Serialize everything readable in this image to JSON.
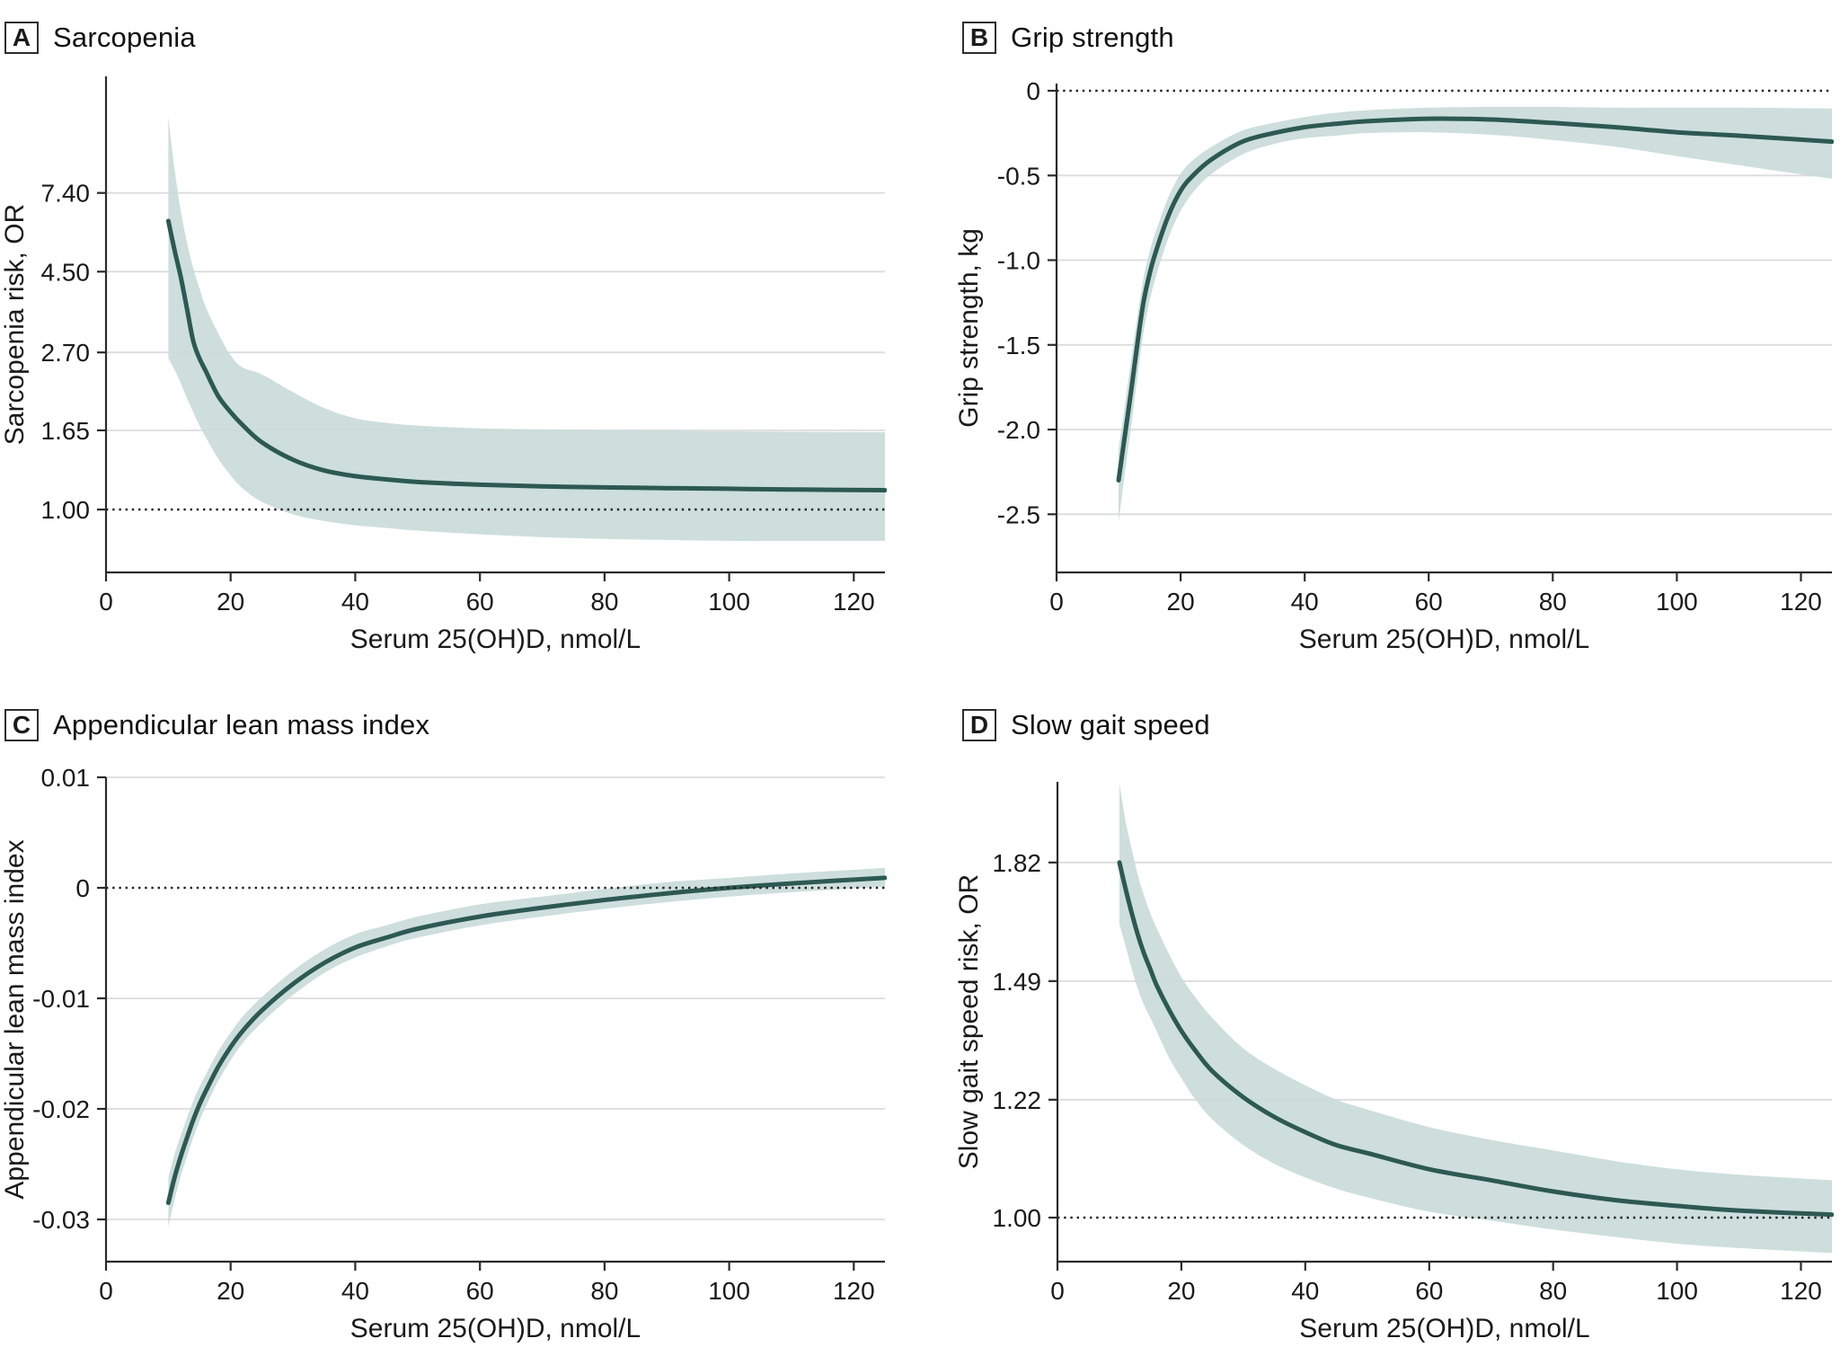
{
  "colors": {
    "band": "#c8dad9",
    "curve": "#2d5953",
    "grid": "#dcdcdc",
    "axis": "#2b2b2b",
    "reference_dots": "#222222",
    "text": "#1a1a1a"
  },
  "chart_data": [
    {
      "panel": "A",
      "label": "A",
      "title": "Sarcopenia",
      "type": "line",
      "xlabel": "Serum 25(OH)D, nmol/L",
      "ylabel": "Sarcopenia risk, OR",
      "yscale": "log",
      "x_range": [
        0,
        125
      ],
      "x_ticks": [
        {
          "v": 0,
          "label": "0"
        },
        {
          "v": 20,
          "label": "20"
        },
        {
          "v": 40,
          "label": "40"
        },
        {
          "v": 60,
          "label": "60"
        },
        {
          "v": 80,
          "label": "80"
        },
        {
          "v": 100,
          "label": "100"
        },
        {
          "v": 120,
          "label": "120"
        }
      ],
      "y_ticks": [
        {
          "v": 7.4,
          "label": "7.40"
        },
        {
          "v": 4.5,
          "label": "4.50"
        },
        {
          "v": 2.7,
          "label": "2.70"
        },
        {
          "v": 1.65,
          "label": "1.65"
        },
        {
          "v": 1.0,
          "label": "1.00",
          "reference": true
        }
      ],
      "reference_value": 1.0,
      "series": {
        "x": [
          10,
          11,
          12,
          13,
          14,
          15,
          16,
          18,
          20,
          22,
          25,
          30,
          35,
          40,
          45,
          50,
          60,
          70,
          80,
          90,
          100,
          110,
          125
        ],
        "mid": [
          6.2,
          5.15,
          4.35,
          3.55,
          2.9,
          2.6,
          2.4,
          2.05,
          1.85,
          1.7,
          1.53,
          1.37,
          1.28,
          1.235,
          1.21,
          1.19,
          1.17,
          1.158,
          1.15,
          1.145,
          1.14,
          1.135,
          1.13
        ],
        "hi": [
          12.0,
          8.6,
          6.6,
          5.4,
          4.6,
          4.05,
          3.6,
          3.05,
          2.65,
          2.45,
          2.35,
          2.1,
          1.9,
          1.78,
          1.73,
          1.7,
          1.67,
          1.66,
          1.65,
          1.645,
          1.64,
          1.635,
          1.63
        ],
        "lo": [
          2.6,
          2.42,
          2.22,
          2.02,
          1.85,
          1.7,
          1.58,
          1.38,
          1.24,
          1.14,
          1.05,
          0.97,
          0.93,
          0.905,
          0.89,
          0.875,
          0.855,
          0.84,
          0.83,
          0.825,
          0.82,
          0.82,
          0.82
        ]
      }
    },
    {
      "panel": "B",
      "label": "B",
      "title": "Grip strength",
      "type": "line",
      "xlabel": "Serum 25(OH)D, nmol/L",
      "ylabel": "Grip strength, kg",
      "yscale": "linear",
      "x_range": [
        0,
        125
      ],
      "x_ticks": [
        {
          "v": 0,
          "label": "0"
        },
        {
          "v": 20,
          "label": "20"
        },
        {
          "v": 40,
          "label": "40"
        },
        {
          "v": 60,
          "label": "60"
        },
        {
          "v": 80,
          "label": "80"
        },
        {
          "v": 100,
          "label": "100"
        },
        {
          "v": 120,
          "label": "120"
        }
      ],
      "y_ticks": [
        {
          "v": 0,
          "label": "0",
          "reference": true
        },
        {
          "v": -0.5,
          "label": "-0.5"
        },
        {
          "v": -1.0,
          "label": "-1.0"
        },
        {
          "v": -1.5,
          "label": "-1.5"
        },
        {
          "v": -2.0,
          "label": "-2.0"
        },
        {
          "v": -2.5,
          "label": "-2.5"
        }
      ],
      "reference_value": 0,
      "series": {
        "x": [
          10,
          11,
          12,
          13,
          14,
          15,
          16,
          18,
          20,
          22,
          25,
          30,
          35,
          40,
          45,
          50,
          60,
          70,
          80,
          90,
          100,
          110,
          125
        ],
        "mid": [
          -2.3,
          -2.04,
          -1.78,
          -1.5,
          -1.25,
          -1.08,
          -0.95,
          -0.74,
          -0.59,
          -0.5,
          -0.405,
          -0.3,
          -0.25,
          -0.215,
          -0.195,
          -0.18,
          -0.165,
          -0.17,
          -0.19,
          -0.215,
          -0.245,
          -0.265,
          -0.3
        ],
        "hi": [
          -2.12,
          -1.86,
          -1.6,
          -1.34,
          -1.11,
          -0.95,
          -0.83,
          -0.63,
          -0.49,
          -0.41,
          -0.33,
          -0.235,
          -0.19,
          -0.155,
          -0.13,
          -0.115,
          -0.1,
          -0.095,
          -0.095,
          -0.1,
          -0.1,
          -0.1,
          -0.105
        ],
        "lo": [
          -2.55,
          -2.26,
          -1.99,
          -1.7,
          -1.43,
          -1.24,
          -1.1,
          -0.87,
          -0.71,
          -0.6,
          -0.49,
          -0.375,
          -0.315,
          -0.28,
          -0.265,
          -0.25,
          -0.245,
          -0.26,
          -0.29,
          -0.33,
          -0.385,
          -0.44,
          -0.52
        ]
      }
    },
    {
      "panel": "C",
      "label": "C",
      "title": "Appendicular lean mass index",
      "type": "line",
      "xlabel": "Serum 25(OH)D, nmol/L",
      "ylabel": "Appendicular lean mass index",
      "yscale": "linear",
      "x_range": [
        0,
        125
      ],
      "x_ticks": [
        {
          "v": 0,
          "label": "0"
        },
        {
          "v": 20,
          "label": "20"
        },
        {
          "v": 40,
          "label": "40"
        },
        {
          "v": 60,
          "label": "60"
        },
        {
          "v": 80,
          "label": "80"
        },
        {
          "v": 100,
          "label": "100"
        },
        {
          "v": 120,
          "label": "120"
        }
      ],
      "y_ticks": [
        {
          "v": 0.01,
          "label": "0.01"
        },
        {
          "v": 0,
          "label": "0",
          "reference": true
        },
        {
          "v": -0.01,
          "label": "-0.01"
        },
        {
          "v": -0.02,
          "label": "-0.02"
        },
        {
          "v": -0.03,
          "label": "-0.03"
        }
      ],
      "reference_value": 0,
      "series": {
        "x": [
          10,
          11,
          12,
          13,
          14,
          15,
          16,
          18,
          20,
          22,
          25,
          30,
          35,
          40,
          45,
          50,
          60,
          70,
          80,
          90,
          100,
          110,
          125
        ],
        "mid": [
          -0.0285,
          -0.0262,
          -0.0243,
          -0.0226,
          -0.021,
          -0.0196,
          -0.0184,
          -0.0162,
          -0.0144,
          -0.0129,
          -0.0111,
          -0.0087,
          -0.0068,
          -0.0054,
          -0.0045,
          -0.0037,
          -0.0026,
          -0.0018,
          -0.0011,
          -0.0005,
          0.0,
          0.0004,
          0.0009
        ],
        "hi": [
          -0.0262,
          -0.0241,
          -0.0224,
          -0.0208,
          -0.0193,
          -0.018,
          -0.0169,
          -0.0148,
          -0.0131,
          -0.0116,
          -0.0099,
          -0.0075,
          -0.0056,
          -0.0042,
          -0.0034,
          -0.0026,
          -0.0015,
          -0.0008,
          -0.0001,
          0.0005,
          0.0009,
          0.0013,
          0.0018
        ],
        "lo": [
          -0.0307,
          -0.0282,
          -0.0261,
          -0.0243,
          -0.0226,
          -0.0211,
          -0.0198,
          -0.0175,
          -0.0156,
          -0.014,
          -0.0122,
          -0.0097,
          -0.0077,
          -0.0063,
          -0.0053,
          -0.0045,
          -0.0034,
          -0.0026,
          -0.0019,
          -0.0013,
          -0.0008,
          -0.0004,
          0.0001
        ]
      }
    },
    {
      "panel": "D",
      "label": "D",
      "title": "Slow gait speed",
      "type": "line",
      "xlabel": "Serum 25(OH)D, nmol/L",
      "ylabel": "Slow gait speed risk, OR",
      "yscale": "log",
      "x_range": [
        0,
        125
      ],
      "x_ticks": [
        {
          "v": 0,
          "label": "0"
        },
        {
          "v": 20,
          "label": "20"
        },
        {
          "v": 40,
          "label": "40"
        },
        {
          "v": 60,
          "label": "60"
        },
        {
          "v": 80,
          "label": "80"
        },
        {
          "v": 100,
          "label": "100"
        },
        {
          "v": 120,
          "label": "120"
        }
      ],
      "y_ticks": [
        {
          "v": 1.82,
          "label": "1.82"
        },
        {
          "v": 1.49,
          "label": "1.49"
        },
        {
          "v": 1.22,
          "label": "1.22"
        },
        {
          "v": 1.0,
          "label": "1.00",
          "reference": true
        }
      ],
      "reference_value": 1.0,
      "series": {
        "x": [
          10,
          11,
          12,
          13,
          14,
          15,
          16,
          18,
          20,
          22,
          25,
          30,
          35,
          40,
          45,
          50,
          60,
          70,
          80,
          90,
          100,
          110,
          125
        ],
        "mid": [
          1.82,
          1.74,
          1.67,
          1.61,
          1.56,
          1.52,
          1.48,
          1.42,
          1.37,
          1.33,
          1.28,
          1.225,
          1.185,
          1.155,
          1.13,
          1.115,
          1.085,
          1.065,
          1.045,
          1.03,
          1.02,
          1.012,
          1.005
        ],
        "hi": [
          2.08,
          1.95,
          1.86,
          1.78,
          1.72,
          1.67,
          1.63,
          1.56,
          1.5,
          1.455,
          1.4,
          1.33,
          1.285,
          1.25,
          1.22,
          1.2,
          1.165,
          1.14,
          1.12,
          1.1,
          1.085,
          1.075,
          1.065
        ],
        "lo": [
          1.64,
          1.58,
          1.52,
          1.47,
          1.43,
          1.4,
          1.37,
          1.31,
          1.265,
          1.225,
          1.18,
          1.13,
          1.095,
          1.07,
          1.05,
          1.035,
          1.01,
          0.995,
          0.98,
          0.968,
          0.957,
          0.95,
          0.942
        ]
      }
    }
  ]
}
